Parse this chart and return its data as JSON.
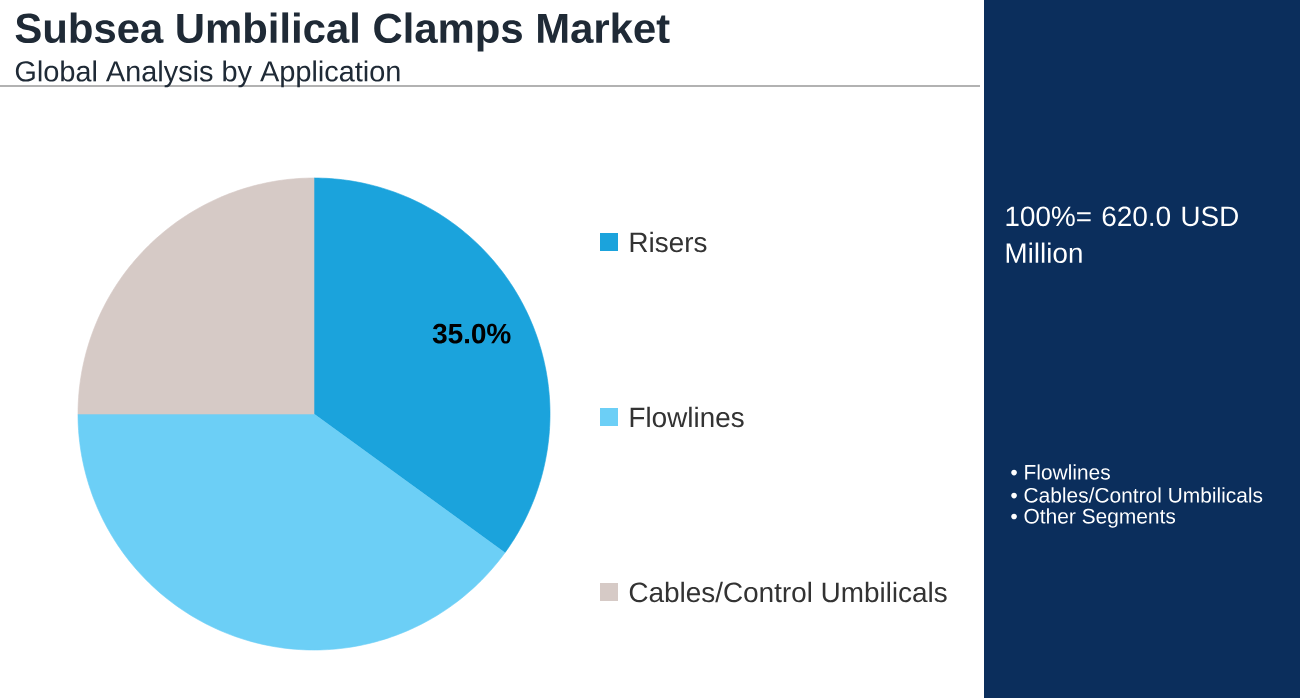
{
  "chart_data": {
    "type": "pie",
    "title": "Subsea Umbilical Clamps Market",
    "subtitle": "Global Analysis by Application",
    "categories": [
      "Risers",
      "Flowlines",
      "Cables/Control Umbilicals"
    ],
    "values": [
      35,
      40,
      25
    ],
    "colors": [
      "#1ba3dc",
      "#6ccff6",
      "#d6cac6"
    ],
    "value_labels": [
      "35.0%",
      null,
      null
    ],
    "legend": "right",
    "annotations": [
      "100%= 620.0 USD Million",
      "• Flowlines",
      "• Cables/Control Umbilicals",
      "• Other Segments"
    ]
  }
}
